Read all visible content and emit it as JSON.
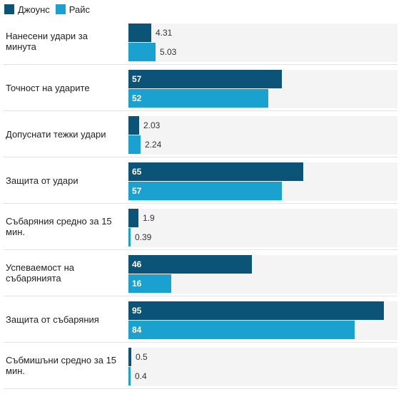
{
  "chart_data": {
    "type": "bar",
    "orientation": "horizontal",
    "legend_position": "top-left",
    "grid": false,
    "series": [
      {
        "name": "Джоунс",
        "color": "#0b5478",
        "values": [
          4.31,
          57,
          2.03,
          65,
          1.9,
          46,
          95,
          0.5
        ]
      },
      {
        "name": "Райс",
        "color": "#1ba1d0",
        "values": [
          5.03,
          52,
          2.24,
          57,
          0.39,
          16,
          84,
          0.4
        ]
      }
    ],
    "categories": [
      "Нанесени удари за минута",
      "Точност на ударите",
      "Допуснати тежки удари",
      "Защита от удари",
      "Събаряния средно за 15 мин.",
      "Успеваемост на събарянията",
      "Защита от събаряния",
      "Събмишъни средно за 15 мин."
    ],
    "category_max": [
      50,
      100,
      50,
      100,
      50,
      100,
      100,
      50
    ],
    "value_labels": [
      [
        "4.31",
        "5.03"
      ],
      [
        "57",
        "52"
      ],
      [
        "2.03",
        "2.24"
      ],
      [
        "65",
        "57"
      ],
      [
        "1.9",
        "0.39"
      ],
      [
        "46",
        "16"
      ],
      [
        "95",
        "84"
      ],
      [
        "0.5",
        "0.4"
      ]
    ]
  }
}
